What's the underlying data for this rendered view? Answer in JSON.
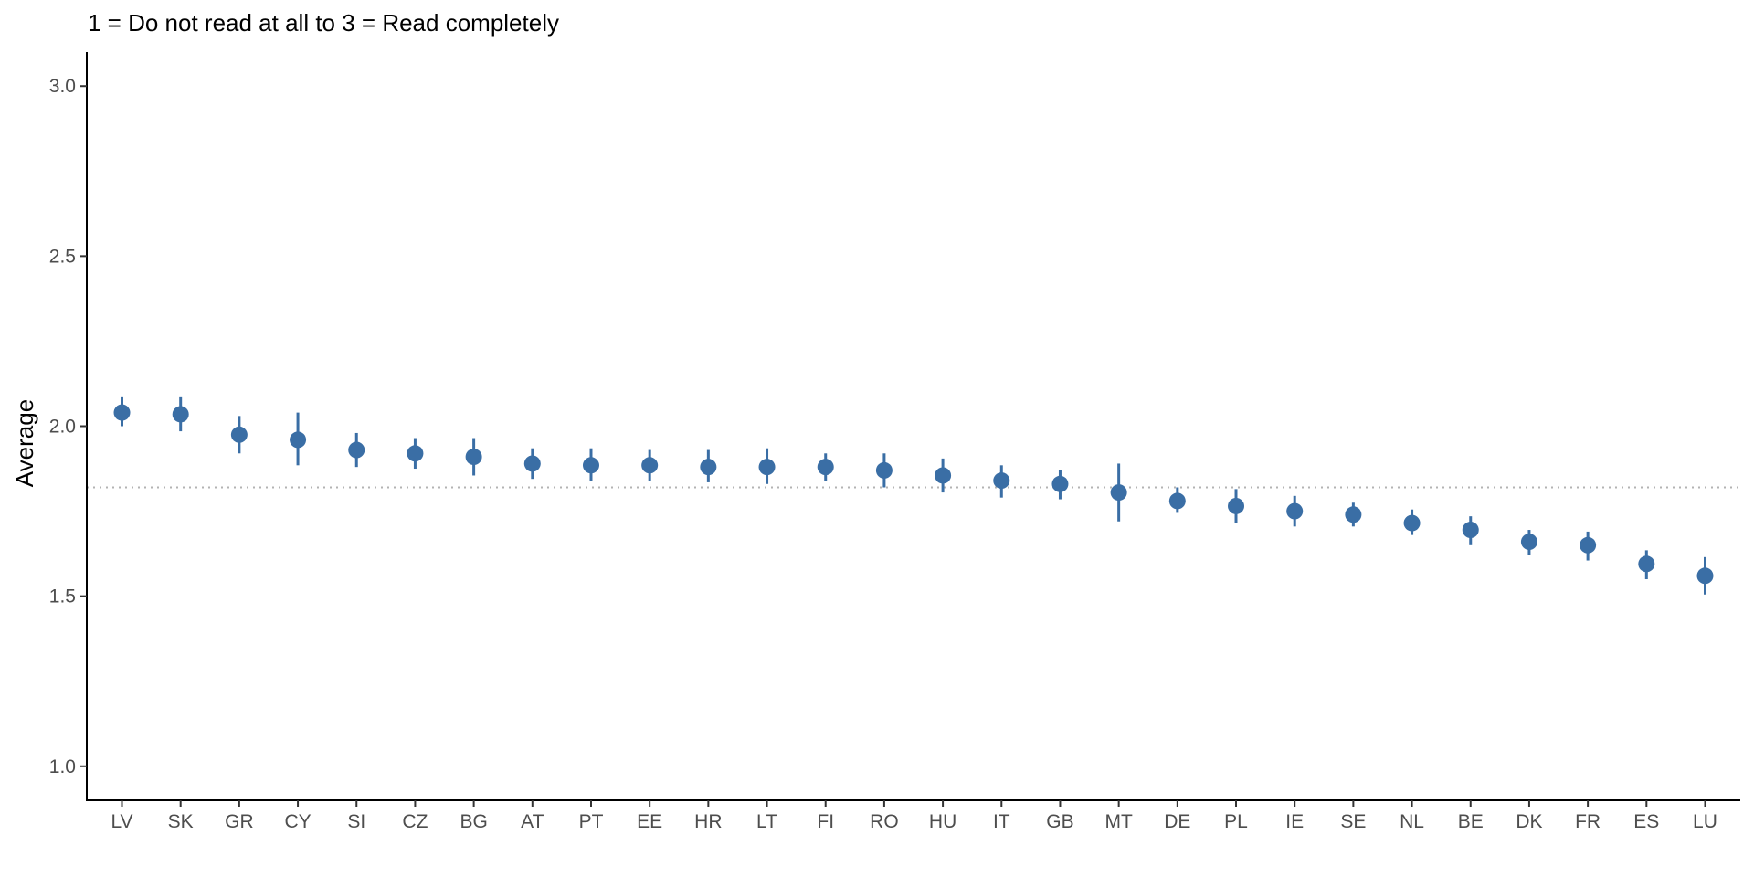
{
  "chart_data": {
    "type": "scatter",
    "subtitle": "1 = Do not read at all to 3 = Read completely",
    "ylabel": "Average",
    "xlabel": "",
    "ylim": [
      0.9,
      3.1
    ],
    "yticks": [
      1.0,
      1.5,
      2.0,
      2.5,
      3.0
    ],
    "ytick_labels": [
      "1.0",
      "1.5",
      "2.0",
      "2.5",
      "3.0"
    ],
    "grid": false,
    "reference_line": 1.82,
    "categories": [
      "LV",
      "SK",
      "GR",
      "CY",
      "SI",
      "CZ",
      "BG",
      "AT",
      "PT",
      "EE",
      "HR",
      "LT",
      "FI",
      "RO",
      "HU",
      "IT",
      "GB",
      "MT",
      "DE",
      "PL",
      "IE",
      "SE",
      "NL",
      "BE",
      "DK",
      "FR",
      "ES",
      "LU"
    ],
    "values": [
      2.04,
      2.035,
      1.975,
      1.96,
      1.93,
      1.92,
      1.91,
      1.89,
      1.885,
      1.885,
      1.88,
      1.88,
      1.88,
      1.87,
      1.855,
      1.84,
      1.83,
      1.805,
      1.78,
      1.765,
      1.75,
      1.74,
      1.715,
      1.695,
      1.66,
      1.65,
      1.595,
      1.56
    ],
    "lower": [
      2.0,
      1.985,
      1.92,
      1.885,
      1.88,
      1.875,
      1.855,
      1.845,
      1.84,
      1.84,
      1.835,
      1.83,
      1.84,
      1.82,
      1.805,
      1.79,
      1.785,
      1.72,
      1.745,
      1.715,
      1.705,
      1.705,
      1.68,
      1.65,
      1.62,
      1.605,
      1.55,
      1.505
    ],
    "upper": [
      2.085,
      2.085,
      2.03,
      2.04,
      1.98,
      1.965,
      1.965,
      1.935,
      1.935,
      1.93,
      1.93,
      1.935,
      1.92,
      1.92,
      1.905,
      1.885,
      1.87,
      1.89,
      1.82,
      1.815,
      1.795,
      1.775,
      1.755,
      1.735,
      1.695,
      1.69,
      1.635,
      1.615
    ],
    "colors": {
      "point": "#3a6ea5",
      "reference_line": "#b3b3b3",
      "axis": "#000000"
    }
  }
}
